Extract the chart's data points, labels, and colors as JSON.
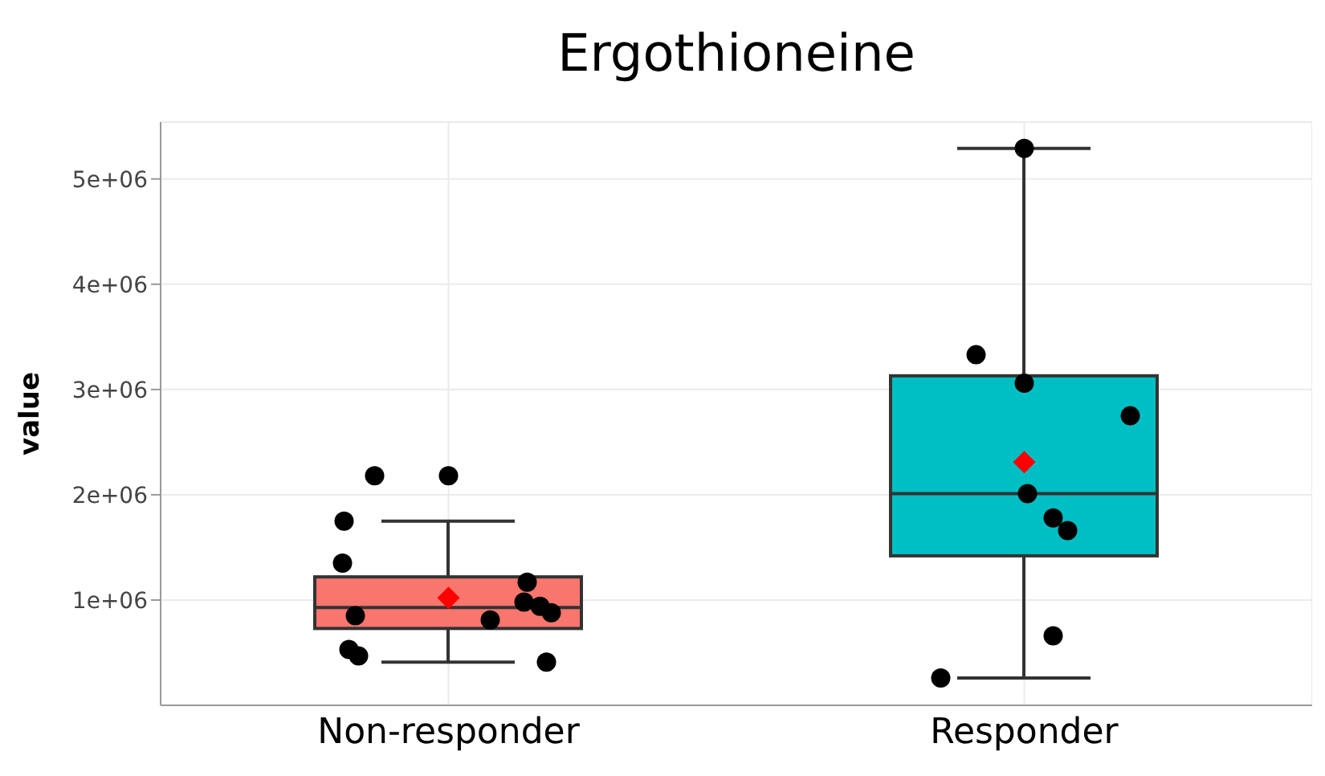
{
  "chart_data": {
    "type": "box",
    "title": "Ergothioneine",
    "ylabel": "value",
    "categories": [
      "Non-responder",
      "Responder"
    ],
    "colors": [
      "#f8766d",
      "#00bfc4"
    ],
    "boxes": [
      {
        "low": 410000,
        "q1": 730000,
        "median": 930000,
        "q3": 1220000,
        "high": 1750000,
        "mean": 1020000
      },
      {
        "low": 260000,
        "q1": 1420000,
        "median": 2010000,
        "q3": 3130000,
        "high": 5290000,
        "mean": 2310000
      }
    ],
    "series": [
      {
        "type": "scatter",
        "color": "#000000",
        "x": [
          "Non-responder",
          "Non-responder",
          "Non-responder",
          "Non-responder",
          "Non-responder",
          "Non-responder",
          "Non-responder",
          "Non-responder",
          "Non-responder",
          "Non-responder",
          "Non-responder",
          "Non-responder",
          "Non-responder",
          "Responder",
          "Responder",
          "Responder",
          "Responder",
          "Responder",
          "Responder",
          "Responder",
          "Responder",
          "Responder"
        ],
        "values": [
          2180000,
          2180000,
          1750000,
          1350000,
          1170000,
          980000,
          940000,
          880000,
          810000,
          850000,
          530000,
          470000,
          410000,
          5290000,
          3330000,
          3060000,
          2750000,
          2010000,
          1780000,
          1660000,
          660000,
          260000
        ]
      }
    ],
    "ylim": [
      0,
      5540000
    ],
    "yticks": [
      {
        "value": 1000000,
        "label": "1e+06"
      },
      {
        "value": 2000000,
        "label": "2e+06"
      },
      {
        "value": 3000000,
        "label": "3e+06"
      },
      {
        "value": 4000000,
        "label": "4e+06"
      },
      {
        "value": 5000000,
        "label": "5e+06"
      }
    ],
    "grid": true,
    "marker": "circle"
  }
}
